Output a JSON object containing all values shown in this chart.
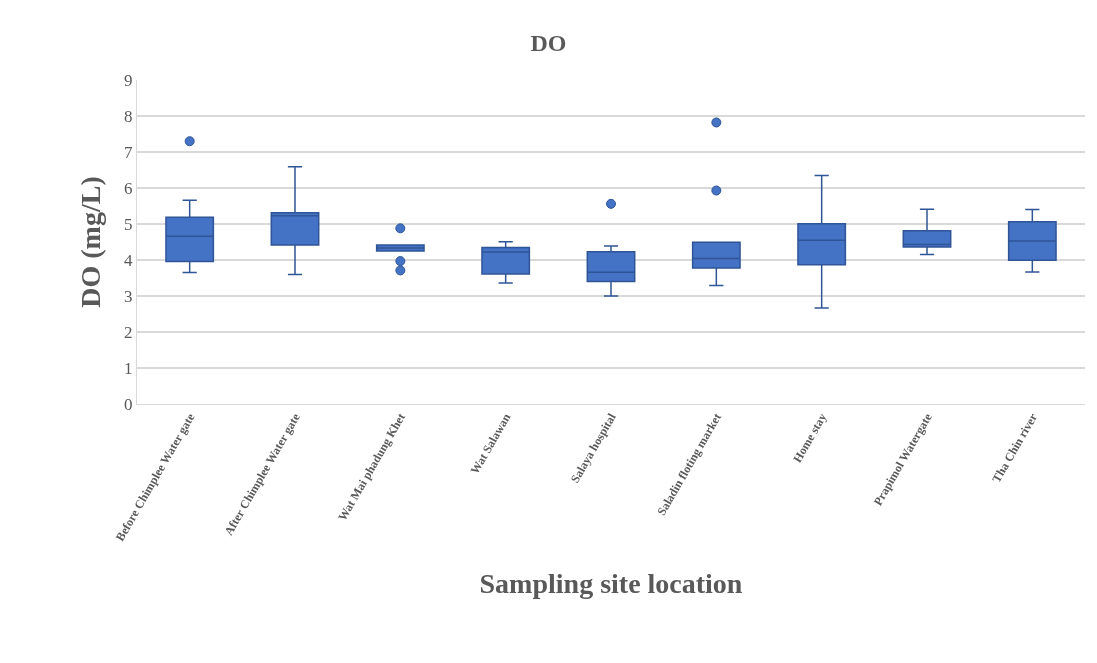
{
  "chart_data": {
    "type": "box",
    "title": "DO",
    "xlabel": "Sampling site location",
    "ylabel": "DO (mg/L)",
    "categories": [
      "Before Chimplee Water gate",
      "After Chimplee Water gate",
      "Wat Mai phadung Khet",
      "Wat Salawan",
      "Salaya hospital",
      "Saladin floting market",
      "Home stay",
      "Prapimol Watergate",
      "Tha Chin river"
    ],
    "boxes": [
      {
        "low": 3.65,
        "q1": 3.96,
        "median": 4.66,
        "q3": 5.19,
        "high": 5.66,
        "outliers": [
          7.3
        ]
      },
      {
        "low": 3.6,
        "q1": 4.42,
        "median": 5.23,
        "q3": 5.31,
        "high": 6.59
      },
      {
        "low": 4.25,
        "q1": 4.25,
        "median": 4.33,
        "q3": 4.42,
        "high": 4.42,
        "outliers": [
          4.88,
          3.97,
          3.71
        ]
      },
      {
        "low": 3.36,
        "q1": 3.61,
        "median": 4.22,
        "q3": 4.35,
        "high": 4.51
      },
      {
        "low": 3.0,
        "q1": 3.4,
        "median": 3.66,
        "q3": 4.23,
        "high": 4.39,
        "outliers": [
          5.56
        ]
      },
      {
        "low": 3.29,
        "q1": 3.78,
        "median": 4.04,
        "q3": 4.49,
        "high": 4.49,
        "outliers": [
          7.82,
          5.93
        ]
      },
      {
        "low": 2.67,
        "q1": 3.87,
        "median": 4.55,
        "q3": 5.01,
        "high": 6.35
      },
      {
        "low": 4.15,
        "q1": 4.36,
        "median": 4.43,
        "q3": 4.81,
        "high": 5.41
      },
      {
        "low": 3.67,
        "q1": 3.99,
        "median": 4.53,
        "q3": 5.06,
        "high": 5.4
      }
    ],
    "color": "#4472c4",
    "ylim": [
      0,
      9
    ],
    "yticks": [
      0,
      1,
      2,
      3,
      4,
      5,
      6,
      7,
      8,
      9
    ],
    "grid": "y",
    "marker": "circle"
  }
}
